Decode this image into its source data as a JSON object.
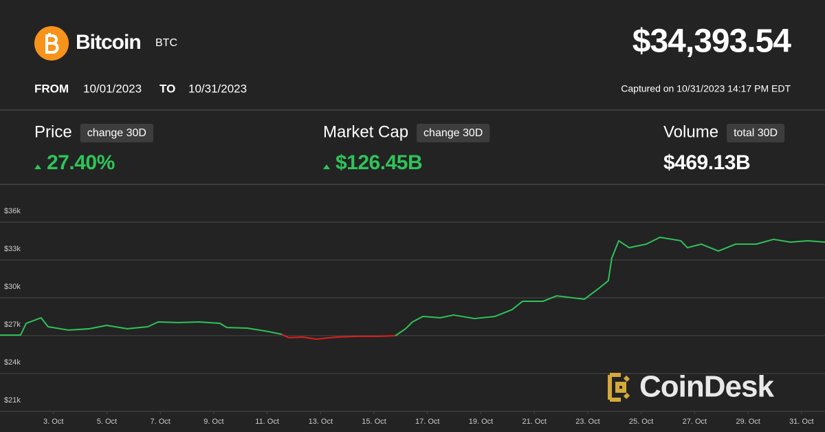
{
  "header": {
    "name": "Bitcoin",
    "symbol": "BTC",
    "price": "$34,393.54",
    "from_label": "FROM",
    "from_date": "10/01/2023",
    "to_label": "TO",
    "to_date": "10/31/2023",
    "captured": "Captured on 10/31/2023 14:17 PM EDT"
  },
  "stats": [
    {
      "label": "Price",
      "badge": "change 30D",
      "value": "27.40%",
      "trend": "up"
    },
    {
      "label": "Market Cap",
      "badge": "change 30D",
      "value": "$126.45B",
      "trend": "up"
    },
    {
      "label": "Volume",
      "badge": "total 30D",
      "value": "$469.13B"
    }
  ],
  "watermark": "CoinDesk",
  "chart_data": {
    "type": "line",
    "x": [
      1,
      1.77,
      1.98,
      2.54,
      2.8,
      3.57,
      4.35,
      4.99,
      5.76,
      6.53,
      6.92,
      7.69,
      8.46,
      9.23,
      9.49,
      10.26,
      11.04,
      11.55,
      11.81,
      12.32,
      12.84,
      13.61,
      14.38,
      15.15,
      15.8,
      16.18,
      16.44,
      16.83,
      17.47,
      17.98,
      18.76,
      19.53,
      20.17,
      20.56,
      21.33,
      21.84,
      22.87,
      23.39,
      23.77,
      23.9,
      24.16,
      24.55,
      25.19,
      25.7,
      26.48,
      26.73,
      27.25,
      27.89,
      28.53,
      29.31,
      29.95,
      30.59,
      31.24,
      31.88
    ],
    "series": [
      {
        "color": "#2fc35a",
        "down_color": "#e0201b",
        "values": [
          27050,
          27050,
          27980,
          28420,
          27710,
          27440,
          27550,
          27820,
          27550,
          27710,
          28090,
          28040,
          28090,
          27980,
          27650,
          27600,
          27330,
          27110,
          26840,
          26890,
          26730,
          26890,
          26950,
          26950,
          27000,
          27550,
          28090,
          28530,
          28420,
          28640,
          28360,
          28530,
          29070,
          29730,
          29730,
          30160,
          29890,
          30710,
          31360,
          33160,
          34530,
          33980,
          34260,
          34800,
          34530,
          33980,
          34260,
          33710,
          34260,
          34260,
          34640,
          34420,
          34530,
          34420
        ]
      }
    ],
    "xlim": [
      1,
      31.88
    ],
    "xticks": [
      {
        "value": 3,
        "label": "3. Oct"
      },
      {
        "value": 5,
        "label": "5. Oct"
      },
      {
        "value": 7,
        "label": "7. Oct"
      },
      {
        "value": 9,
        "label": "9. Oct"
      },
      {
        "value": 11,
        "label": "11. Oct"
      },
      {
        "value": 13,
        "label": "13. Oct"
      },
      {
        "value": 15,
        "label": "15. Oct"
      },
      {
        "value": 17,
        "label": "17. Oct"
      },
      {
        "value": 19,
        "label": "19. Oct"
      },
      {
        "value": 21,
        "label": "21. Oct"
      },
      {
        "value": 23,
        "label": "23. Oct"
      },
      {
        "value": 25,
        "label": "25. Oct"
      },
      {
        "value": 27,
        "label": "27. Oct"
      },
      {
        "value": 29,
        "label": "29. Oct"
      },
      {
        "value": 31,
        "label": "31. Oct"
      }
    ],
    "ylim": [
      21000,
      39000
    ],
    "yticks": [
      {
        "value": 21000,
        "label": "$21k"
      },
      {
        "value": 24000,
        "label": "$24k"
      },
      {
        "value": 27000,
        "label": "$27k"
      },
      {
        "value": 30000,
        "label": "$30k"
      },
      {
        "value": 33000,
        "label": "$33k"
      },
      {
        "value": 36000,
        "label": "$36k"
      }
    ],
    "grid": true
  }
}
